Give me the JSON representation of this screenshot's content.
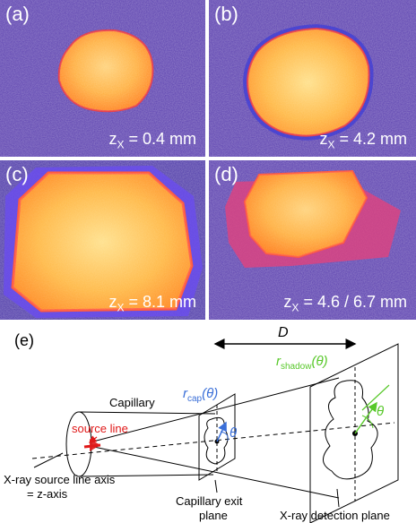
{
  "panels": [
    {
      "label": "(a)",
      "z_prefix": "z",
      "z_sub": "X",
      "z_value": " = 0.4 mm"
    },
    {
      "label": "(b)",
      "z_prefix": "z",
      "z_sub": "X",
      "z_value": " = 4.2 mm"
    },
    {
      "label": "(c)",
      "z_prefix": "z",
      "z_sub": "X",
      "z_value": " = 8.1 mm"
    },
    {
      "label": "(d)",
      "z_prefix": "z",
      "z_sub": "X",
      "z_value": " = 4.6 / 6.7 mm"
    }
  ],
  "diagram": {
    "label": "(e)",
    "distance_label": "D",
    "capillary": "Capillary",
    "source_line": "source line",
    "r_cap": "r",
    "r_cap_sub": "cap",
    "r_cap_arg": "(θ)",
    "r_shadow": "r",
    "r_shadow_sub": "shadow",
    "r_shadow_arg": "(θ)",
    "theta": "θ",
    "axis_line1": "X-ray source line axis",
    "axis_line2": "= z-axis",
    "exit_plane_line1": "Capillary exit",
    "exit_plane_line2": "plane",
    "detection_plane": "X-ray detection plane"
  },
  "colors": {
    "background_purple": "#5a3fae",
    "spot_orange": "#ff8a1e",
    "source_red": "#e01818",
    "r_cap_blue": "#3a6fd8",
    "r_shadow_green": "#58c82a"
  }
}
